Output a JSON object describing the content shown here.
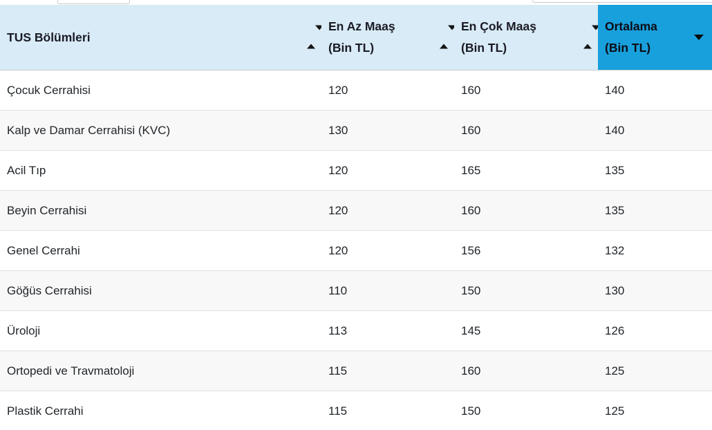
{
  "colors": {
    "header_bg": "#d8ebf6",
    "sorted_column_bg": "#18a0dc",
    "row_stripe_bg": "#f8f8f8",
    "row_border": "#e1e1e1",
    "text": "#212529"
  },
  "top_controls": {
    "length_select_visible": "partially cut off",
    "search_input_visible": "partially cut off"
  },
  "table": {
    "columns": [
      {
        "line1": "TUS Bölümleri",
        "line2": "",
        "sort_state": "unsorted"
      },
      {
        "line1": "En Az Maaş",
        "line2": "(Bin TL)",
        "sort_state": "unsorted"
      },
      {
        "line1": "En Çok Maaş",
        "line2": "(Bin TL)",
        "sort_state": "unsorted"
      },
      {
        "line1": "Ortalama",
        "line2": "(Bin TL)",
        "sort_state": "sorted-desc"
      }
    ],
    "rows": [
      {
        "name": "Çocuk Cerrahisi",
        "min": "120",
        "max": "160",
        "avg": "140"
      },
      {
        "name": "Kalp ve Damar Cerrahisi (KVC)",
        "min": "130",
        "max": "160",
        "avg": "140"
      },
      {
        "name": "Acil Tıp",
        "min": "120",
        "max": "165",
        "avg": "135"
      },
      {
        "name": "Beyin Cerrahisi",
        "min": "120",
        "max": "160",
        "avg": "135"
      },
      {
        "name": "Genel Cerrahi",
        "min": "120",
        "max": "156",
        "avg": "132"
      },
      {
        "name": "Göğüs Cerrahisi",
        "min": "110",
        "max": "150",
        "avg": "130"
      },
      {
        "name": "Üroloji",
        "min": "113",
        "max": "145",
        "avg": "126"
      },
      {
        "name": "Ortopedi ve Travmatoloji",
        "min": "115",
        "max": "160",
        "avg": "125"
      },
      {
        "name": "Plastik Cerrahi",
        "min": "115",
        "max": "150",
        "avg": "125"
      }
    ]
  }
}
